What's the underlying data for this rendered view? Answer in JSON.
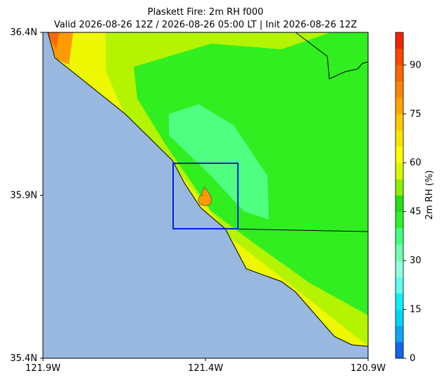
{
  "map": {
    "title": "Plaskett Fire: 2m RH f000",
    "subtitle": "Valid 2026-08-26 12Z / 2026-08-26 05:00 LT | Init 2026-08-26 12Z",
    "xlim": [
      -121.9,
      -120.9
    ],
    "xticks": [
      {
        "value": -121.9,
        "label": "121.9W"
      },
      {
        "value": -121.4,
        "label": "121.4W"
      },
      {
        "value": -120.9,
        "label": "120.9W"
      }
    ],
    "ylim": [
      35.4,
      36.4
    ],
    "yticks": [
      {
        "value": 35.4,
        "label": "35.4N"
      },
      {
        "value": 35.9,
        "label": "35.9N"
      },
      {
        "value": 36.4,
        "label": "36.4N"
      }
    ]
  },
  "colorbar": {
    "label": "2m RH (%)",
    "lim": [
      0,
      100
    ],
    "ticks": [
      0,
      15,
      30,
      45,
      60,
      75,
      90
    ],
    "colors": [
      "#1464f0",
      "#0aa6f4",
      "#00d4f8",
      "#10f0f8",
      "#60fff0",
      "#90ffe0",
      "#70ffb0",
      "#44ff80",
      "#2cf22c",
      "#22e014",
      "#8cf000",
      "#d8f800",
      "#ffff00",
      "#f8e400",
      "#ffc800",
      "#ffa400",
      "#ff8400",
      "#ff6400",
      "#ff4600",
      "#f02400"
    ]
  }
}
